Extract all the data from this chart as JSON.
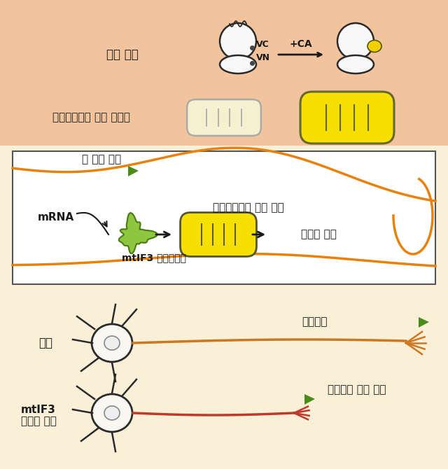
{
  "bg_top": "#f2c49e",
  "bg_bottom": "#faf0d8",
  "orange_color": "#e8820c",
  "yellow_mito": "#f5e000",
  "yellow_dot": "#f0d000",
  "green_color": "#8dc63f",
  "green_dark": "#4a8c1c",
  "black": "#1a1a1a",
  "red_axon": "#c0392b",
  "orange_axon": "#cc7722",
  "mito_edge": "#555533",
  "labels": {
    "sensor_label": "형광 센서",
    "vc_label": "VC",
    "vn_label": "VN",
    "ca_label": "+CA",
    "mito_vis_label": "미토콘드리아 번역 시각화",
    "ngf_label": "뇌 성장 인자",
    "mrna_label": "mRNA",
    "mito_trans_label": "미토콘드리아 번역 증가",
    "mtif3_label": "mtIF3 단백질증가",
    "energy_label": "에너지 증가",
    "normal_label": "정상",
    "axon_label": "축색돌기",
    "mtif3_def_label": "mtIF3\n단백질 부족",
    "axon_delay_label": "축색돌기 발달 지연"
  }
}
